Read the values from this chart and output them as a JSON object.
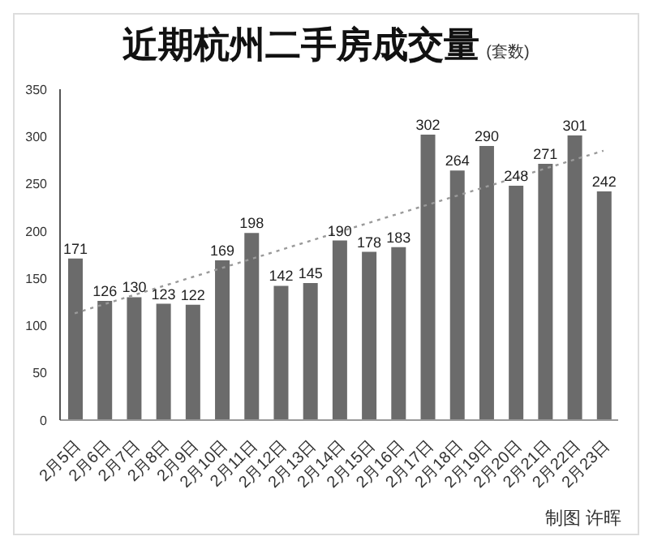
{
  "chart_data": {
    "type": "bar",
    "title": "近期杭州二手房成交量",
    "subtitle": "(套数)",
    "categories": [
      "2月5日",
      "2月6日",
      "2月7日",
      "2月8日",
      "2月9日",
      "2月10日",
      "2月11日",
      "2月12日",
      "2月13日",
      "2月14日",
      "2月15日",
      "2月16日",
      "2月17日",
      "2月18日",
      "2月19日",
      "2月20日",
      "2月21日",
      "2月22日",
      "2月23日"
    ],
    "series": [
      {
        "color": "#6b6b6b",
        "values": [
          171,
          126,
          130,
          123,
          122,
          169,
          198,
          142,
          145,
          190,
          178,
          183,
          302,
          264,
          290,
          248,
          271,
          301,
          242
        ],
        "value_labels": [
          "171",
          "126",
          "130",
          "123",
          "122",
          "169",
          "198",
          "142",
          "145",
          "190",
          "178",
          "183",
          "302",
          "264",
          "290",
          "248",
          "271",
          "301",
          "242"
        ]
      },
      {
        "type": "line",
        "color": "#9a9a9a",
        "line_style": "dotted",
        "marker": "none",
        "x": [
          "2月5日",
          "2月23日"
        ],
        "values": [
          113,
          285
        ]
      }
    ],
    "ylim": [
      0,
      350
    ],
    "yticks": [
      0,
      50,
      100,
      150,
      200,
      250,
      300,
      350
    ],
    "grid": false,
    "legend": false,
    "annotations": [
      "制图 许晖"
    ]
  }
}
